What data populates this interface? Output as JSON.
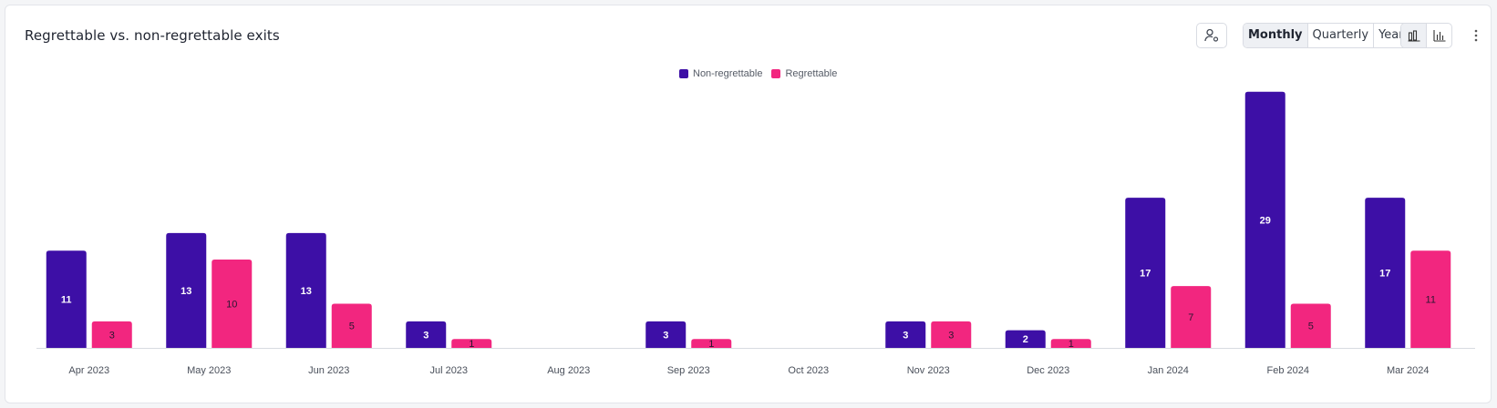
{
  "header": {
    "title": "Regrettable vs. non-regrettable exits"
  },
  "toolbar": {
    "periods": [
      "Monthly",
      "Quarterly",
      "Yearly"
    ],
    "active_period": "Monthly"
  },
  "icons": {
    "user_settings": "user-settings-icon",
    "grouped_bar": "grouped-bar-chart-icon",
    "bar": "bar-chart-icon",
    "more": "more-vertical-icon"
  },
  "colors": {
    "non_regrettable": "#3d0fa6",
    "regrettable": "#f2267f",
    "axis": "#d8dbe1"
  },
  "chart_data": {
    "type": "bar",
    "categories": [
      "Apr 2023",
      "May 2023",
      "Jun 2023",
      "Jul 2023",
      "Aug 2023",
      "Sep 2023",
      "Oct 2023",
      "Nov 2023",
      "Dec 2023",
      "Jan 2024",
      "Feb 2024",
      "Mar 2024"
    ],
    "series": [
      {
        "name": "Non-regrettable",
        "color": "#3d0fa6",
        "values": [
          11,
          13,
          13,
          3,
          0,
          3,
          0,
          3,
          2,
          17,
          29,
          17
        ]
      },
      {
        "name": "Regrettable",
        "color": "#f2267f",
        "values": [
          3,
          10,
          5,
          1,
          0,
          1,
          0,
          3,
          1,
          7,
          5,
          11
        ]
      }
    ],
    "ylim": [
      0,
      29
    ],
    "legend": "top-center",
    "grid": false
  }
}
